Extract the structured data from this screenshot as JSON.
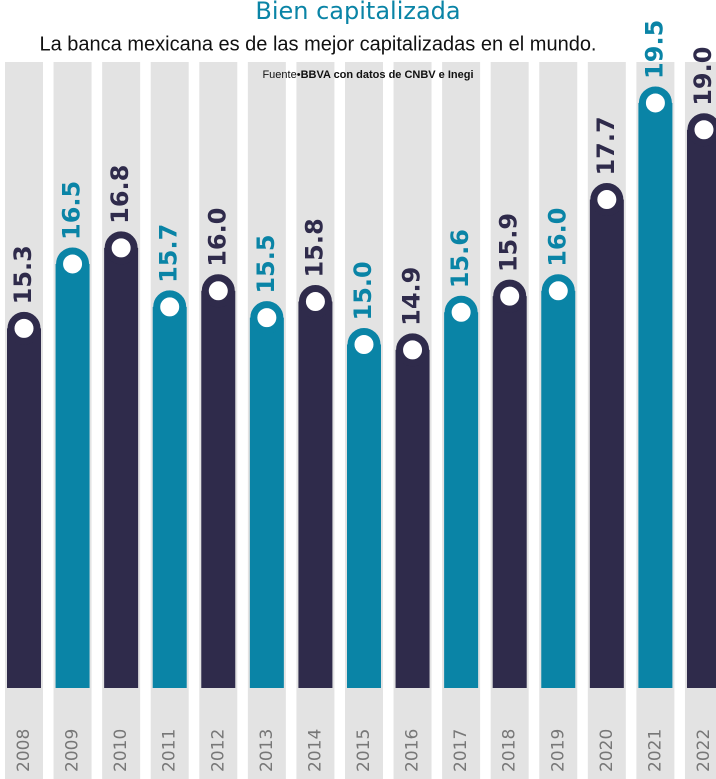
{
  "chart_data": {
    "type": "lollipop-bar",
    "title": "Bien capitalizada",
    "subtitle": "La banca mexicana es de las mejor capitalizadas en el mundo.",
    "source_label": "Fuente•",
    "source": "BBVA con datos de CNBV e Inegi",
    "categories": [
      "2008",
      "2009",
      "2010",
      "2011",
      "2012",
      "2013",
      "2014",
      "2015",
      "2016",
      "2017",
      "2018",
      "2019",
      "2020",
      "2021",
      "2022"
    ],
    "values": [
      15.3,
      16.5,
      16.8,
      15.7,
      16.0,
      15.5,
      15.8,
      15.0,
      14.9,
      15.6,
      15.9,
      16.0,
      17.7,
      19.5,
      19.0
    ],
    "value_labels": [
      "15.3",
      "16.5",
      "16.8",
      "15.7",
      "16.0",
      "15.5",
      "15.8",
      "15.0",
      "14.9",
      "15.6",
      "15.9",
      "16.0",
      "17.7",
      "19.5",
      "19.0"
    ],
    "colors": [
      "#2f2b4b",
      "#0a84a6",
      "#2f2b4b",
      "#0a84a6",
      "#2f2b4b",
      "#0a84a6",
      "#2f2b4b",
      "#0a84a6",
      "#2f2b4b",
      "#0a84a6",
      "#2f2b4b",
      "#0a84a6",
      "#2f2b4b",
      "#0a84a6",
      "#2f2b4b"
    ],
    "ylim": [
      8.6,
      20.3
    ]
  }
}
